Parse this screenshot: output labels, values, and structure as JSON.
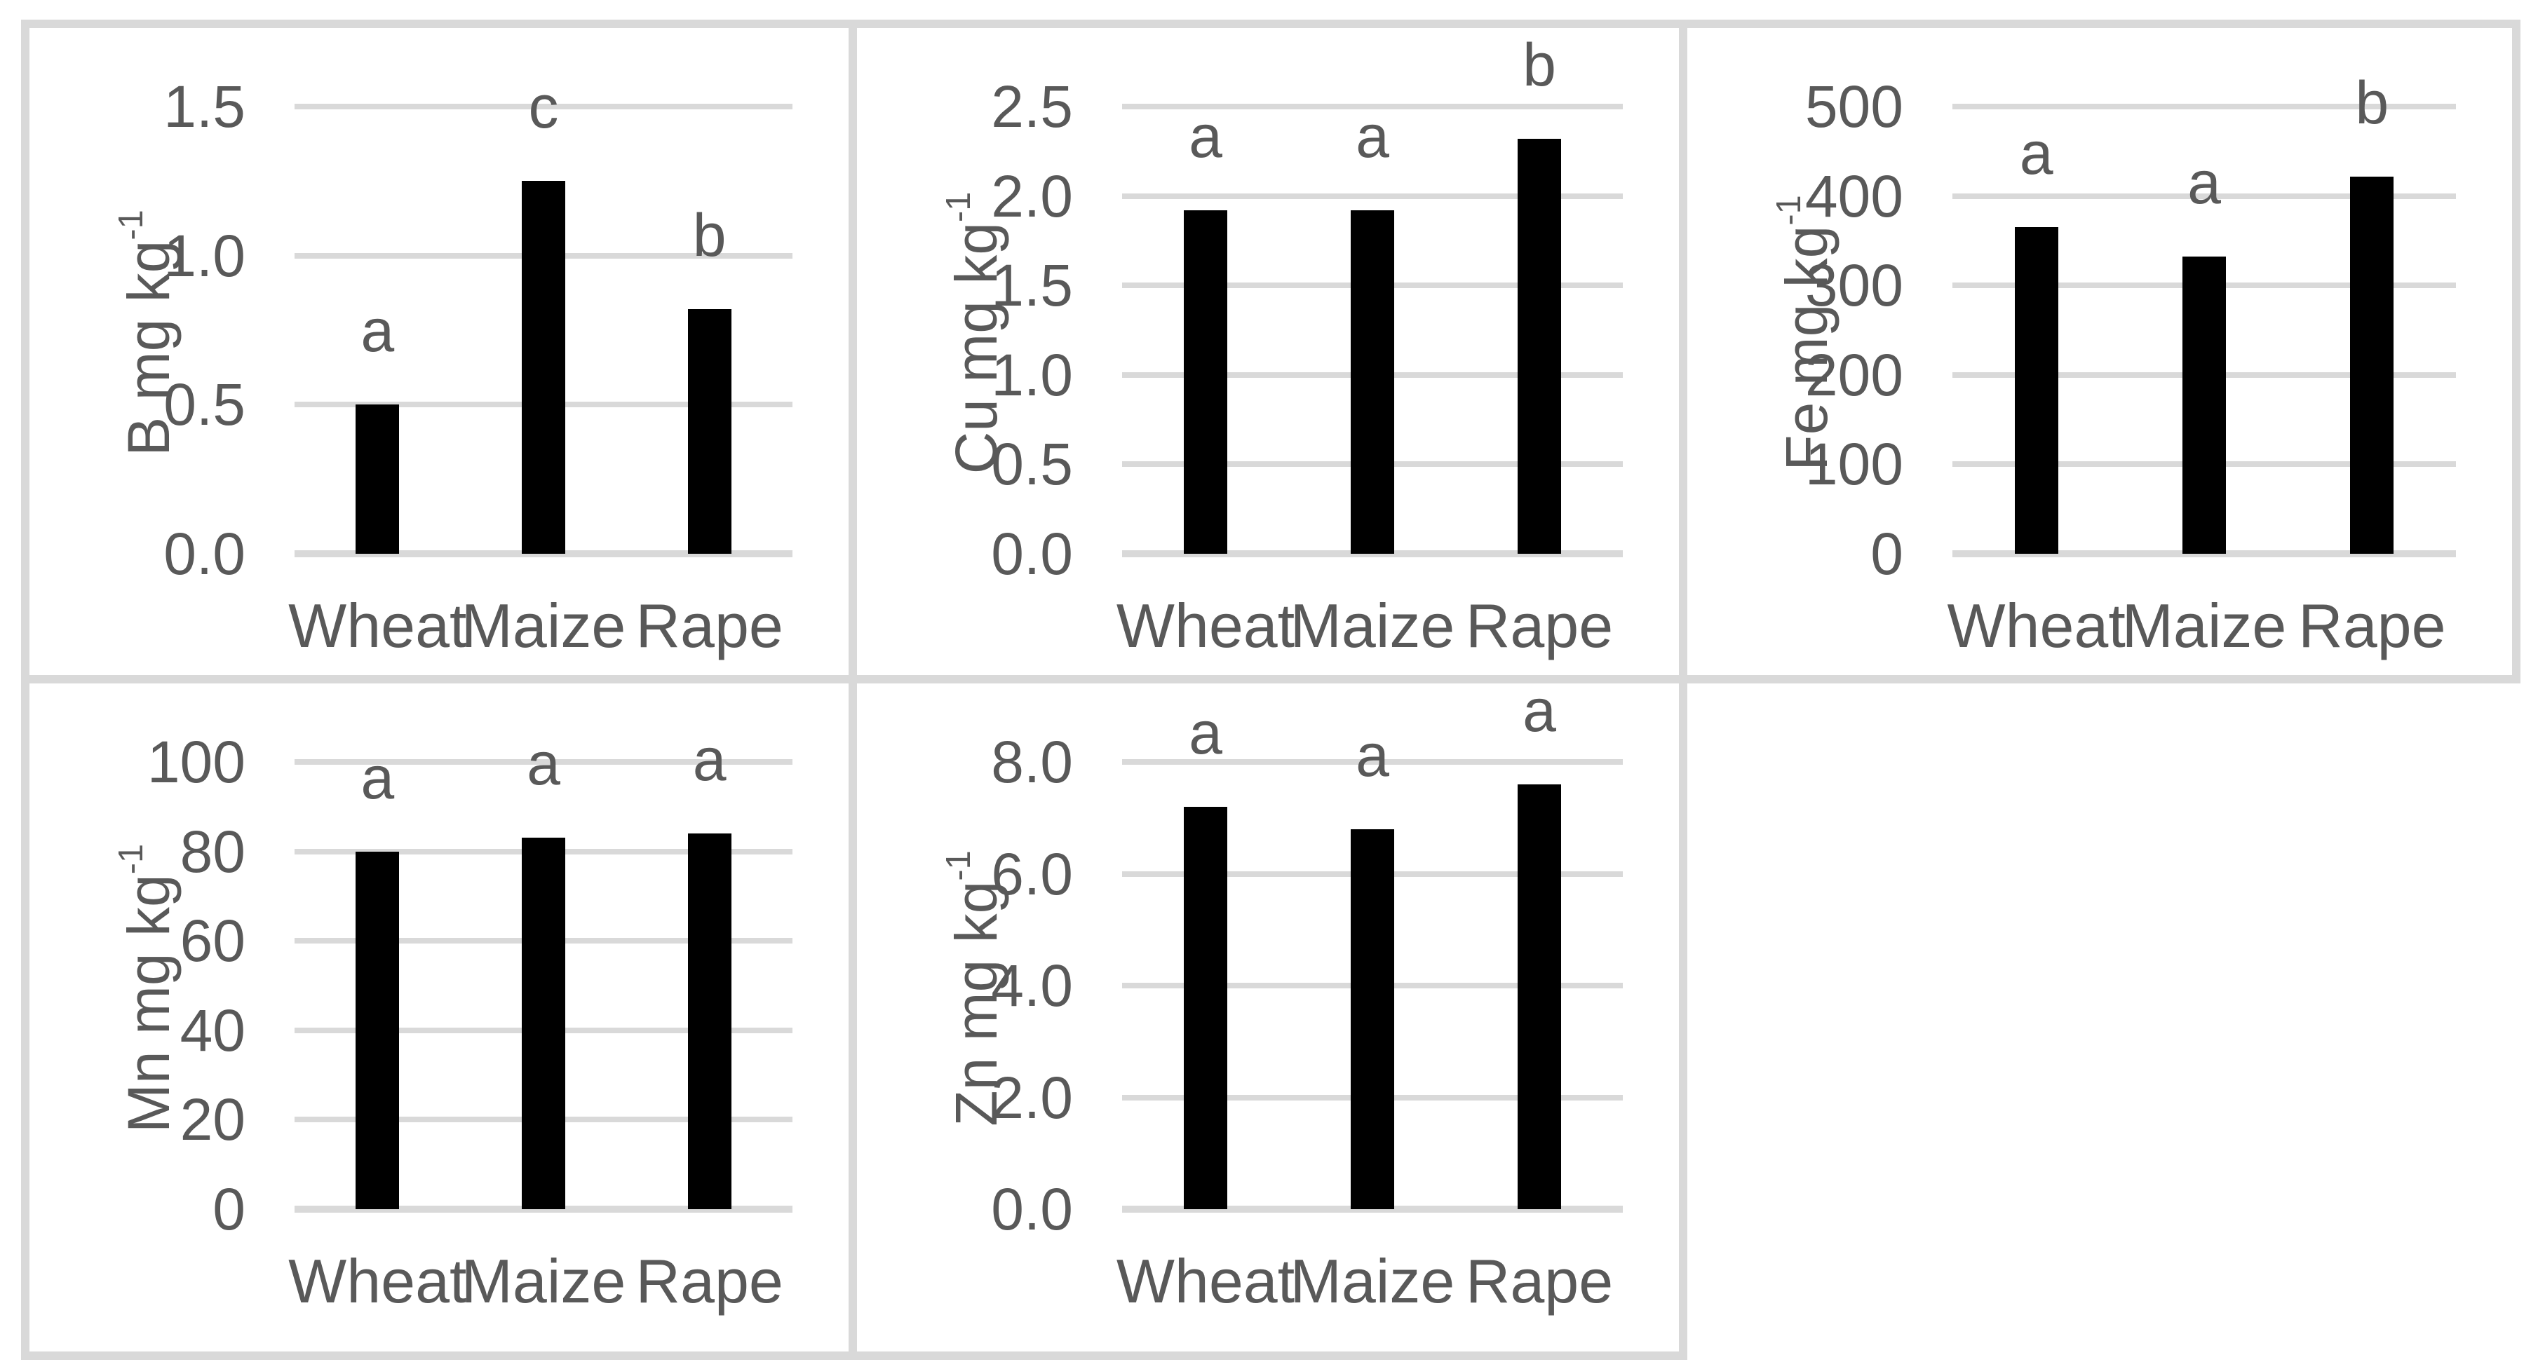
{
  "figure": {
    "background_color": "#ffffff",
    "panel_border_color": "#d9d9d9",
    "grid_color": "#d9d9d9",
    "bar_color": "#000000",
    "text_color": "#595959"
  },
  "chart_data": [
    {
      "type": "bar",
      "element": "B",
      "ylabel_main": "B mg kg",
      "ylabel_sup": "-1",
      "ylabel_display": "B mg kg⁻¹",
      "categories": [
        "Wheat",
        "Maize",
        "Rape"
      ],
      "values": [
        0.5,
        1.25,
        0.82
      ],
      "sig_letters": [
        "a",
        "c",
        "b"
      ],
      "ylim": [
        0,
        1.5
      ],
      "tick_values": [
        0,
        0.5,
        1.0,
        1.5
      ],
      "tick_labels": [
        "0.0",
        "0.5",
        "1.0",
        "1.5"
      ],
      "grid": true,
      "legend": false
    },
    {
      "type": "bar",
      "element": "Cu",
      "ylabel_main": "Cu mg kg",
      "ylabel_sup": "-1",
      "ylabel_display": "Cu mg kg⁻¹",
      "categories": [
        "Wheat",
        "Maize",
        "Rape"
      ],
      "values": [
        1.92,
        1.92,
        2.32
      ],
      "sig_letters": [
        "a",
        "a",
        "b"
      ],
      "ylim": [
        0,
        2.5
      ],
      "tick_values": [
        0,
        0.5,
        1.0,
        1.5,
        2.0,
        2.5
      ],
      "tick_labels": [
        "0.0",
        "0.5",
        "1.0",
        "1.5",
        "2.0",
        "2.5"
      ],
      "grid": true,
      "legend": false
    },
    {
      "type": "bar",
      "element": "Fe",
      "ylabel_main": "Fe mg kg",
      "ylabel_sup": "-1",
      "ylabel_display": "Fe mg kg⁻¹",
      "categories": [
        "Wheat",
        "Maize",
        "Rape"
      ],
      "values": [
        365,
        332,
        422
      ],
      "sig_letters": [
        "a",
        "a",
        "b"
      ],
      "ylim": [
        0,
        500
      ],
      "tick_values": [
        0,
        100,
        200,
        300,
        400,
        500
      ],
      "tick_labels": [
        "0",
        "100",
        "200",
        "300",
        "400",
        "500"
      ],
      "grid": true,
      "legend": false
    },
    {
      "type": "bar",
      "element": "Mn",
      "ylabel_main": "Mn mg kg",
      "ylabel_sup": "-1",
      "ylabel_display": "Mn mg kg⁻¹",
      "categories": [
        "Wheat",
        "Maize",
        "Rape"
      ],
      "values": [
        80,
        83,
        84
      ],
      "sig_letters": [
        "a",
        "a",
        "a"
      ],
      "ylim": [
        0,
        100
      ],
      "tick_values": [
        0,
        20,
        40,
        60,
        80,
        100
      ],
      "tick_labels": [
        "0",
        "20",
        "40",
        "60",
        "80",
        "100"
      ],
      "grid": true,
      "legend": false
    },
    {
      "type": "bar",
      "element": "Zn",
      "ylabel_main": "Zn mg kg",
      "ylabel_sup": "-1",
      "ylabel_display": "Zn mg kg⁻¹",
      "categories": [
        "Wheat",
        "Maize",
        "Rape"
      ],
      "values": [
        7.2,
        6.8,
        7.6
      ],
      "sig_letters": [
        "a",
        "a",
        "a"
      ],
      "ylim": [
        0,
        8.0
      ],
      "tick_values": [
        0,
        2.0,
        4.0,
        6.0,
        8.0
      ],
      "tick_labels": [
        "0.0",
        "2.0",
        "4.0",
        "6.0",
        "8.0"
      ],
      "grid": true,
      "legend": false
    }
  ]
}
